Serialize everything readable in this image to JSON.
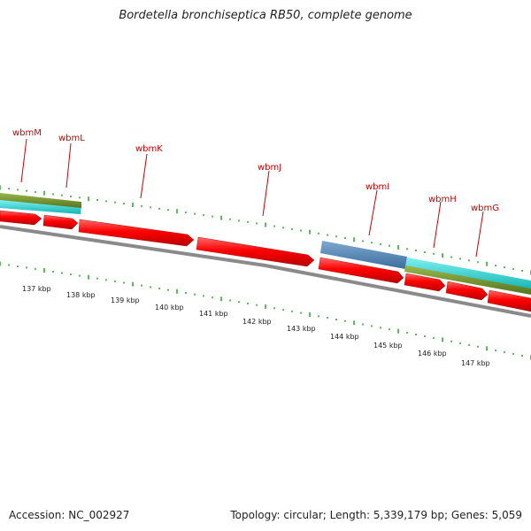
{
  "title": "Bordetella bronchiseptica RB50, complete genome",
  "footer": {
    "accession": "Accession: NC_002927",
    "summary": "Topology: circular; Length: 5,339,179 bp; Genes: 5,059"
  },
  "colors": {
    "forward_cds": "#ff0000",
    "reverse_cds": "#ff0000",
    "blue_feature": "#4a7fb0",
    "cyan_feature": "#19c8c8",
    "olive_feature": "#6a8f28",
    "backbone": "#888888",
    "tick": "#1a9a1a",
    "gene_label": "#cc0000"
  },
  "scale_labels": [
    "137 kbp",
    "138 kbp",
    "139 kbp",
    "140 kbp",
    "141 kbp",
    "142 kbp",
    "143 kbp",
    "144 kbp",
    "145 kbp",
    "146 kbp",
    "147 kbp"
  ],
  "gene_labels": [
    "wbmM",
    "wbmL",
    "wbmK",
    "wbmJ",
    "wbmI",
    "wbmH",
    "wbmG"
  ]
}
